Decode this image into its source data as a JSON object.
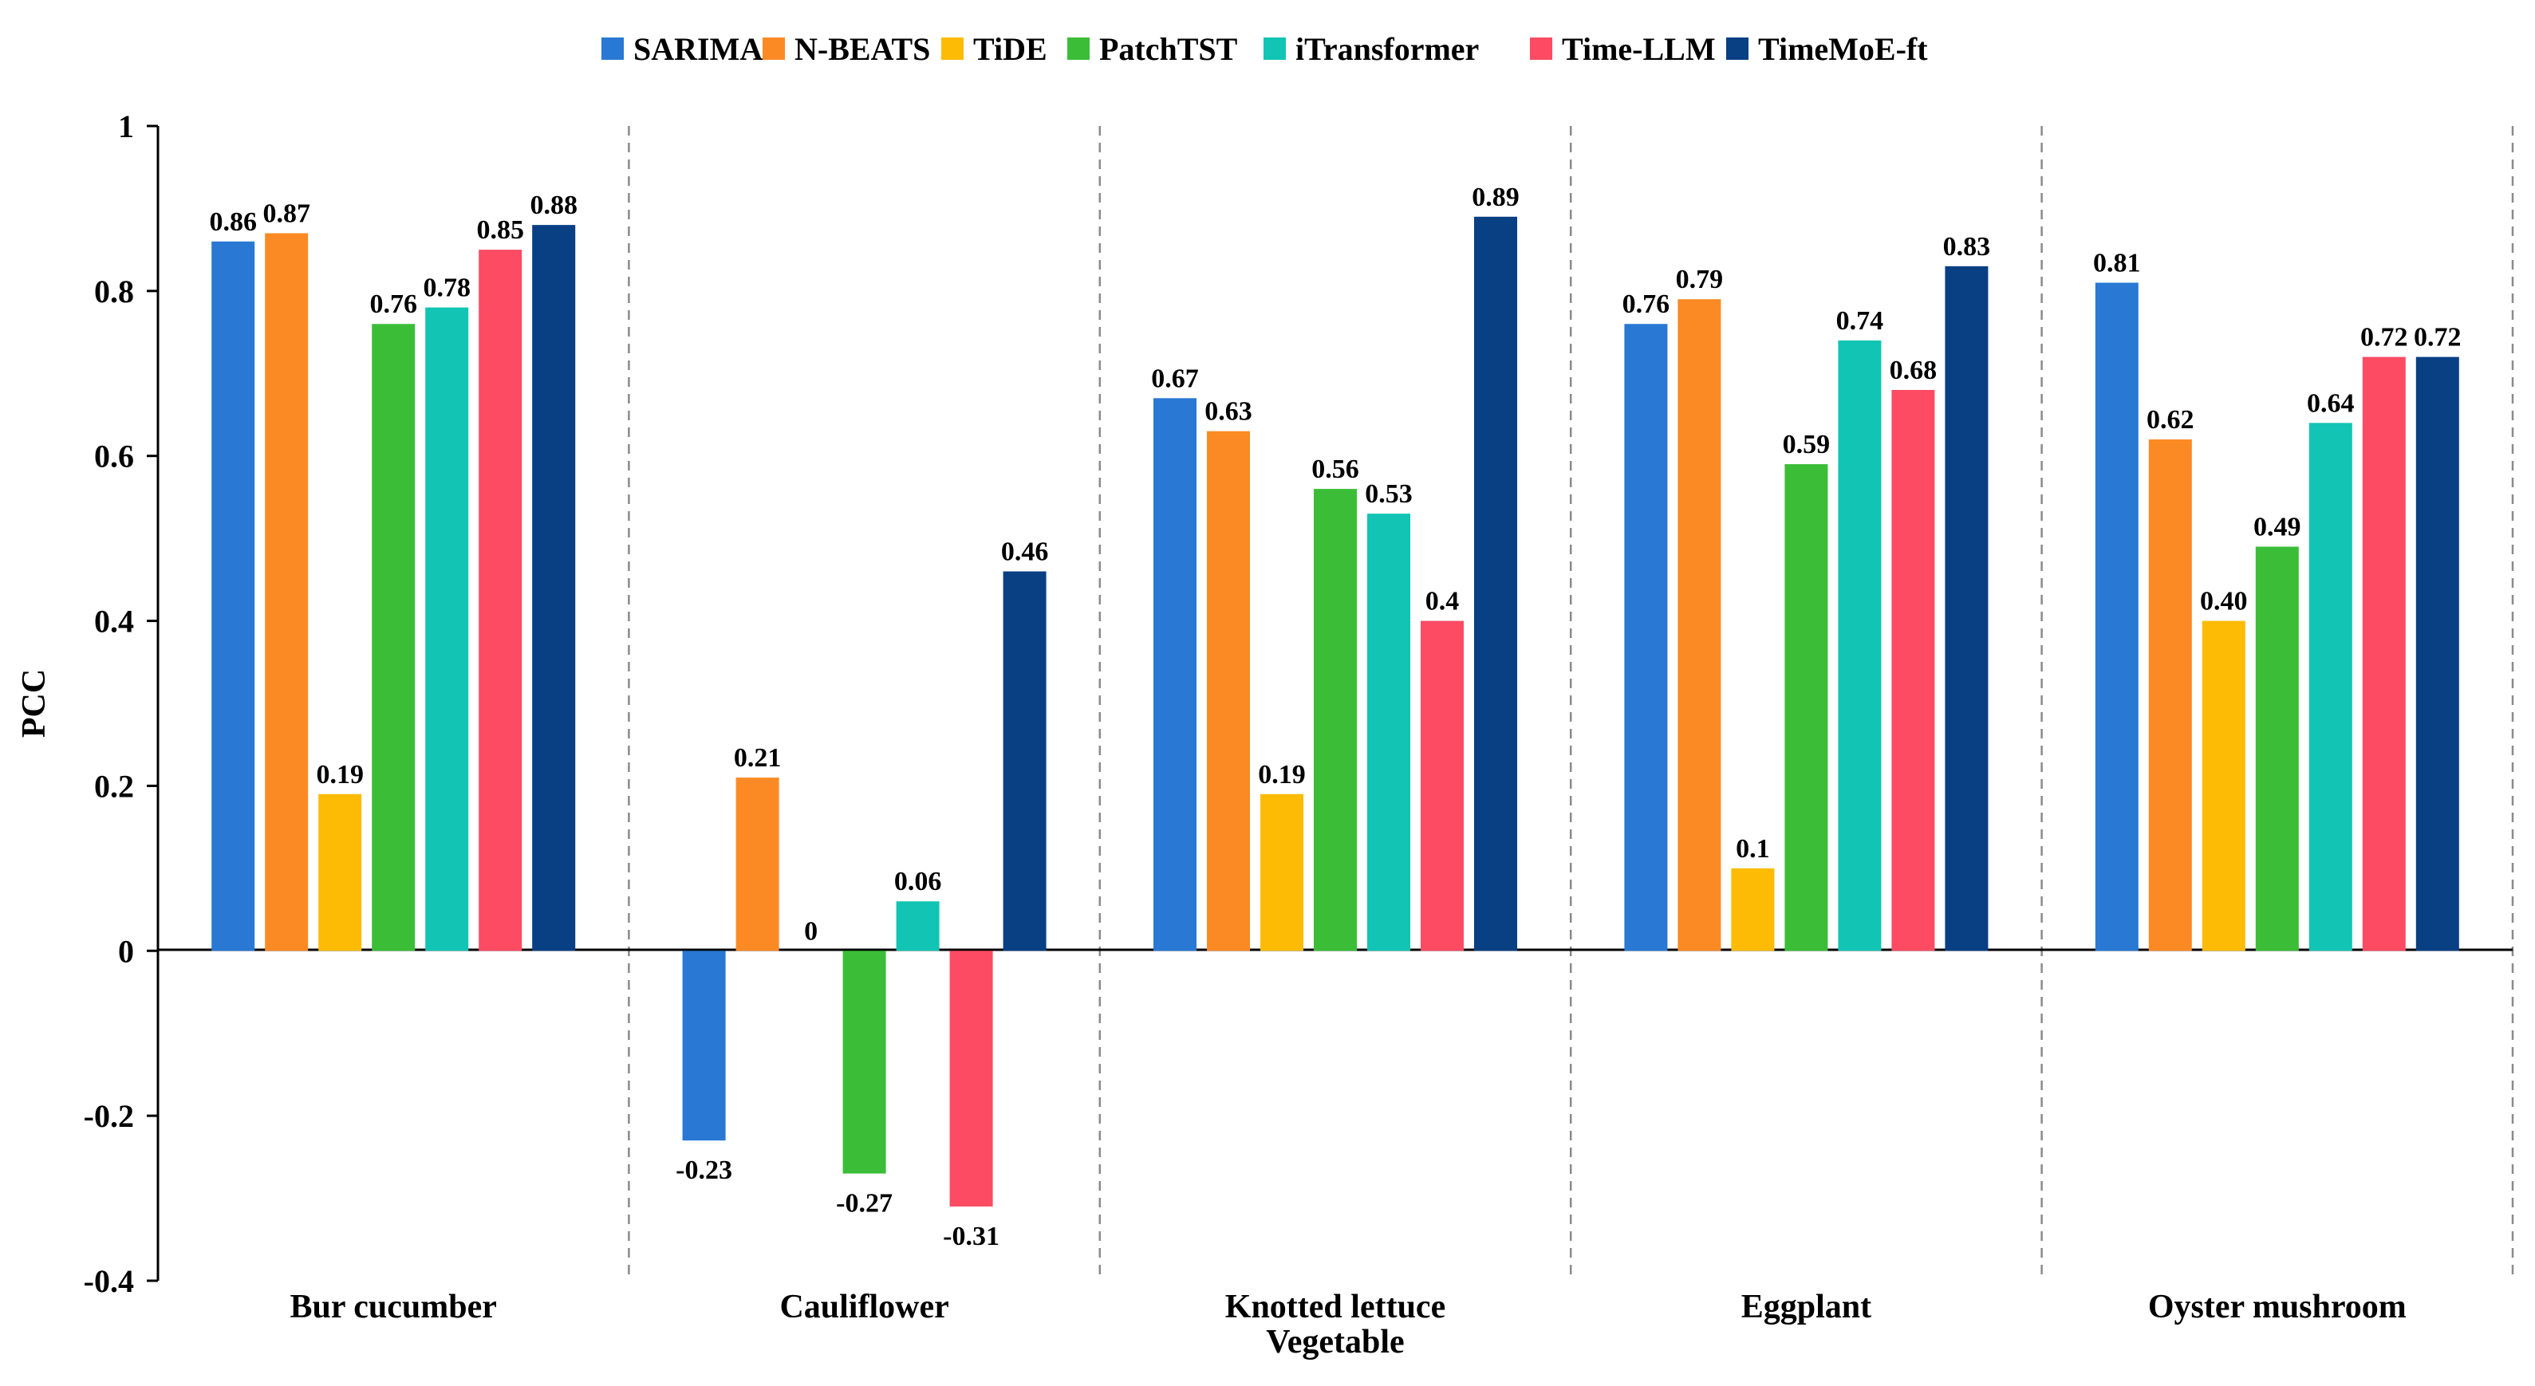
{
  "chart_data": {
    "type": "bar",
    "title": "",
    "xlabel": "",
    "ylabel": "PCC",
    "ylim": [
      -0.4,
      1
    ],
    "yticks": [
      1,
      0.8,
      0.6,
      0.4,
      0.2,
      0,
      -0.2,
      -0.4
    ],
    "ytick_labels": [
      "1",
      "0.8",
      "0.6",
      "0.4",
      "0.2",
      "0",
      "-0.2",
      "-0.4"
    ],
    "grid": false,
    "legend_position": "top-center",
    "categories": [
      "Bur cucumber",
      "Cauliflower",
      "Knotted lettuce\nVegetable",
      "Eggplant",
      "Oyster mushroom"
    ],
    "category_labels": [
      [
        "Bur cucumber"
      ],
      [
        "Cauliflower"
      ],
      [
        "Knotted lettuce",
        "Vegetable"
      ],
      [
        "Eggplant"
      ],
      [
        "Oyster mushroom"
      ]
    ],
    "series": [
      {
        "name": "SARIMA",
        "color": "#2878d4",
        "values": [
          0.86,
          -0.23,
          0.67,
          0.76,
          0.81
        ],
        "labels": [
          "0.86",
          "-0.23",
          "0.67",
          "0.76",
          "0.81"
        ]
      },
      {
        "name": "N-BEATS",
        "color": "#fb8a24",
        "values": [
          0.87,
          0.21,
          0.63,
          0.79,
          0.62
        ],
        "labels": [
          "0.87",
          "0.21",
          "0.63",
          "0.79",
          "0.62"
        ]
      },
      {
        "name": "TiDE",
        "color": "#fdbb05",
        "values": [
          0.19,
          0,
          0.19,
          0.1,
          0.4
        ],
        "labels": [
          "0.19",
          "0",
          "0.19",
          "0.1",
          "0.40"
        ]
      },
      {
        "name": "PatchTST",
        "color": "#3bbd38",
        "values": [
          0.76,
          -0.27,
          0.56,
          0.59,
          0.49
        ],
        "labels": [
          "0.76",
          "-0.27",
          "0.56",
          "0.59",
          "0.49"
        ]
      },
      {
        "name": "iTransformer",
        "color": "#12c4b4",
        "values": [
          0.78,
          0.06,
          0.53,
          0.74,
          0.64
        ],
        "labels": [
          "0.78",
          "0.06",
          "0.53",
          "0.74",
          "0.64"
        ]
      },
      {
        "name": "Time-LLM",
        "color": "#fc4b63",
        "values": [
          0.85,
          -0.31,
          0.4,
          0.68,
          0.72
        ],
        "labels": [
          "0.85",
          "-0.31",
          "0.4",
          "0.68",
          "0.72"
        ]
      },
      {
        "name": "TimeMoE-ft",
        "color": "#093f83",
        "values": [
          0.88,
          0.46,
          0.89,
          0.83,
          0.72
        ],
        "labels": [
          "0.88",
          "0.46",
          "0.89",
          "0.83",
          "0.72"
        ]
      }
    ]
  }
}
